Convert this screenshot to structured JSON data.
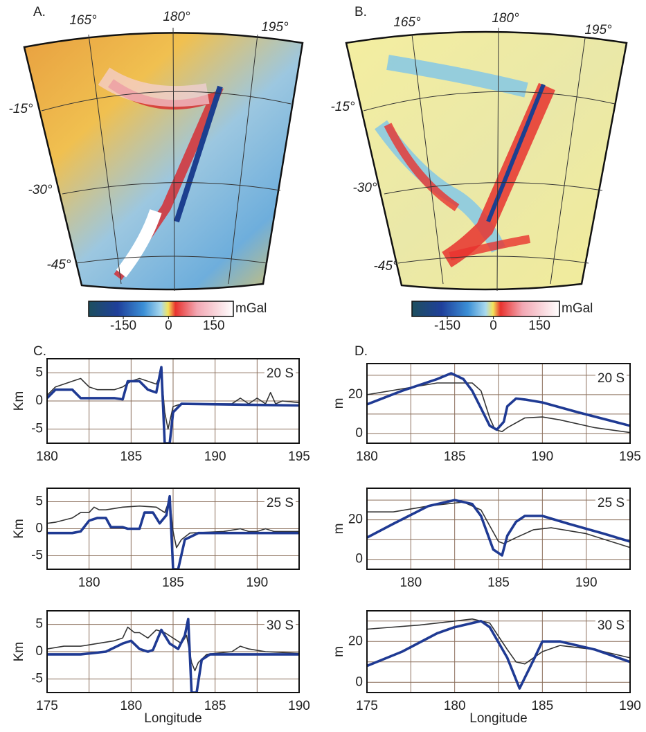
{
  "panel_labels": [
    "A.",
    "B.",
    "C.",
    "D."
  ],
  "maps": [
    {
      "lon_labels": [
        "165°",
        "180°",
        "195°"
      ],
      "lat_labels": [
        "-15°",
        "-30°",
        "-45°"
      ],
      "colorbar": {
        "range": [
          -265,
          215
        ],
        "ticks": [
          -150,
          0,
          150
        ],
        "unit": "mGal"
      }
    },
    {
      "lon_labels": [
        "165°",
        "180°",
        "195°"
      ],
      "lat_labels": [
        "-15°",
        "-30°",
        "-45°"
      ],
      "colorbar": {
        "range": [
          -265,
          215
        ],
        "ticks": [
          -150,
          0,
          150
        ],
        "unit": "mGal"
      }
    }
  ],
  "chart_data": [
    {
      "type": "line",
      "annotation": "20 S",
      "ylabel": "Km",
      "xlim": [
        180,
        195
      ],
      "xticks": [
        180,
        185,
        190,
        195
      ],
      "xminor": [
        182.5,
        187.5,
        192.5
      ],
      "ylim": [
        -7.5,
        7.5
      ],
      "yticks": [
        -5,
        0,
        5
      ],
      "series": [
        {
          "color": "#333333",
          "x": [
            180,
            180.5,
            181,
            181.5,
            182,
            182.5,
            183,
            184,
            184.5,
            185,
            185.5,
            186,
            186.5,
            186.8,
            187,
            187.2,
            187.5,
            188,
            189,
            190,
            191,
            191.5,
            192,
            192.5,
            193,
            193.3,
            193.6,
            194,
            195
          ],
          "values": [
            1,
            2.5,
            3,
            3.5,
            4,
            2.5,
            2,
            2,
            2.5,
            3.5,
            4,
            3.5,
            3,
            5,
            -2,
            -5,
            -1,
            -0.5,
            -0.5,
            -0.5,
            -0.5,
            0.5,
            -0.5,
            0.5,
            -0.5,
            1.5,
            -0.5,
            0,
            -0.3
          ]
        },
        {
          "color": "#1f3a93",
          "x": [
            180,
            180.5,
            181.5,
            182,
            184,
            184.5,
            184.8,
            185.5,
            186,
            186.5,
            186.8,
            187,
            187.3,
            187.5,
            188,
            195
          ],
          "values": [
            0.5,
            2,
            2,
            0.5,
            0.5,
            0.3,
            3.5,
            3.5,
            2,
            1.5,
            6,
            -7.5,
            -7.5,
            -2,
            -0.5,
            -0.8
          ]
        }
      ]
    },
    {
      "type": "line",
      "annotation": "20 S",
      "ylabel": "m",
      "xlim": [
        180,
        195
      ],
      "xticks": [
        180,
        185,
        190,
        195
      ],
      "xminor": [
        182.5,
        187.5,
        192.5
      ],
      "ylim": [
        -5,
        36
      ],
      "yticks": [
        0,
        20
      ],
      "yminor": [
        10,
        30
      ],
      "series": [
        {
          "color": "#333333",
          "x": [
            180,
            182,
            184,
            186,
            186.5,
            187,
            187.3,
            187.7,
            188,
            189,
            190,
            191,
            193,
            195
          ],
          "values": [
            20,
            23,
            26,
            26,
            22,
            8,
            2,
            1,
            3,
            8,
            8.5,
            7,
            3,
            0.5
          ]
        },
        {
          "color": "#1f3a93",
          "x": [
            180,
            182,
            184,
            184.8,
            185.5,
            186,
            186.5,
            187,
            187.4,
            187.8,
            188,
            188.5,
            189,
            190,
            192,
            195
          ],
          "values": [
            15,
            22,
            28,
            31,
            28,
            22,
            13,
            4,
            2,
            6,
            14,
            18,
            17.5,
            16,
            11,
            4
          ]
        }
      ]
    },
    {
      "type": "line",
      "annotation": "25 S",
      "ylabel": "Km",
      "xlim": [
        177.5,
        192.5
      ],
      "xticks": [
        180,
        185,
        190
      ],
      "xminor": [
        177.5,
        182.5,
        187.5,
        192.5
      ],
      "ylim": [
        -7.5,
        7.5
      ],
      "yticks": [
        -5,
        0,
        5
      ],
      "series": [
        {
          "color": "#333333",
          "x": [
            177.5,
            178,
            179,
            179.5,
            180,
            180.3,
            180.6,
            181,
            182,
            183,
            184,
            184.5,
            184.8,
            185,
            185.2,
            185.5,
            186,
            188,
            189,
            189.5,
            190,
            190.5,
            191,
            192.5
          ],
          "values": [
            1,
            1.2,
            2,
            3,
            3,
            4,
            3.5,
            3.5,
            4,
            4.2,
            4,
            3,
            5.5,
            -0.5,
            -3.5,
            -2,
            -0.8,
            -0.5,
            0,
            -0.5,
            -0.5,
            0,
            -0.5,
            -0.5
          ]
        },
        {
          "color": "#1f3a93",
          "x": [
            177.5,
            179,
            179.5,
            180,
            180.5,
            181,
            181.3,
            182,
            182.3,
            183,
            183.3,
            183.8,
            184.2,
            184.6,
            184.8,
            185,
            185.3,
            185.7,
            186.5,
            192.5
          ],
          "values": [
            -0.8,
            -0.8,
            -0.5,
            1.5,
            2,
            2,
            0.3,
            0.3,
            0,
            0,
            3,
            3,
            1,
            2.5,
            6,
            -7.5,
            -7.5,
            -2,
            -0.8,
            -0.8
          ]
        }
      ]
    },
    {
      "type": "line",
      "annotation": "25 S",
      "ylabel": "m",
      "xlim": [
        177.5,
        192.5
      ],
      "xticks": [
        180,
        185,
        190
      ],
      "xminor": [
        177.5,
        182.5,
        187.5,
        192.5
      ],
      "ylim": [
        -5,
        36
      ],
      "yticks": [
        0,
        20
      ],
      "yminor": [
        10,
        30
      ],
      "series": [
        {
          "color": "#333333",
          "x": [
            177.5,
            179,
            181,
            183,
            184,
            184.5,
            185,
            185.3,
            186,
            187,
            188,
            190,
            192.5
          ],
          "values": [
            24,
            24,
            27,
            29,
            25,
            17,
            9,
            8,
            11,
            15,
            16,
            13,
            6
          ]
        },
        {
          "color": "#1f3a93",
          "x": [
            177.5,
            179,
            181,
            182.5,
            183.5,
            184,
            184.7,
            185.2,
            185.5,
            186,
            186.5,
            187.5,
            189,
            191,
            192.5
          ],
          "values": [
            11,
            18,
            27,
            30,
            28,
            22,
            5,
            2,
            12,
            19,
            22,
            22,
            18,
            13,
            9
          ]
        }
      ]
    },
    {
      "type": "line",
      "annotation": "30 S",
      "ylabel": "Km",
      "xlabel": "Longitude",
      "xlim": [
        175,
        190
      ],
      "xticks": [
        175,
        180,
        185,
        190
      ],
      "xminor": [
        177.5,
        182.5,
        187.5
      ],
      "ylim": [
        -7.5,
        7.5
      ],
      "yticks": [
        -5,
        0,
        5
      ],
      "series": [
        {
          "color": "#333333",
          "x": [
            175,
            176,
            177,
            178,
            179,
            179.5,
            179.8,
            180.2,
            180.5,
            181,
            181.5,
            182,
            182.5,
            183,
            183.3,
            183.6,
            183.8,
            184,
            184.5,
            185,
            186,
            186.5,
            187,
            188,
            190
          ],
          "values": [
            0.5,
            1,
            1,
            1.5,
            2,
            2.5,
            4.5,
            3.5,
            3.5,
            2.5,
            4,
            3.5,
            2.5,
            1.5,
            3,
            -2,
            -3.5,
            -2,
            -0.5,
            -0.3,
            0,
            1,
            0.5,
            0,
            -0.3
          ]
        },
        {
          "color": "#1f3a93",
          "x": [
            175,
            177,
            178.5,
            179.5,
            180,
            180.5,
            181,
            181.3,
            181.8,
            182.3,
            182.8,
            183.2,
            183.4,
            183.6,
            183.9,
            184.2,
            184.7,
            190
          ],
          "values": [
            -0.5,
            -0.5,
            0,
            1.5,
            2,
            0.5,
            0,
            0.3,
            4,
            1.5,
            0.5,
            3,
            6,
            -7.5,
            -7.5,
            -1.5,
            -0.5,
            -0.5
          ]
        }
      ]
    },
    {
      "type": "line",
      "annotation": "30 S",
      "ylabel": "m",
      "xlabel": "Longitude",
      "xlim": [
        175,
        190
      ],
      "xticks": [
        175,
        180,
        185,
        190
      ],
      "xminor": [
        177.5,
        182.5,
        187.5
      ],
      "ylim": [
        -5,
        35
      ],
      "yticks": [
        0,
        20
      ],
      "yminor": [
        10,
        30
      ],
      "series": [
        {
          "color": "#333333",
          "x": [
            175,
            178,
            180,
            181,
            182,
            183,
            183.5,
            184,
            185,
            186,
            187,
            188,
            190
          ],
          "values": [
            26,
            28,
            30,
            31,
            29,
            16,
            10,
            9,
            15,
            18,
            17,
            16,
            12
          ]
        },
        {
          "color": "#1f3a93",
          "x": [
            175,
            177,
            179,
            180,
            181,
            181.5,
            182,
            183,
            183.7,
            184.5,
            185,
            186,
            187,
            188,
            190
          ],
          "values": [
            8,
            15,
            24,
            27,
            29,
            30,
            27,
            12,
            -3,
            11,
            20,
            20,
            18,
            16,
            10
          ]
        }
      ]
    }
  ]
}
